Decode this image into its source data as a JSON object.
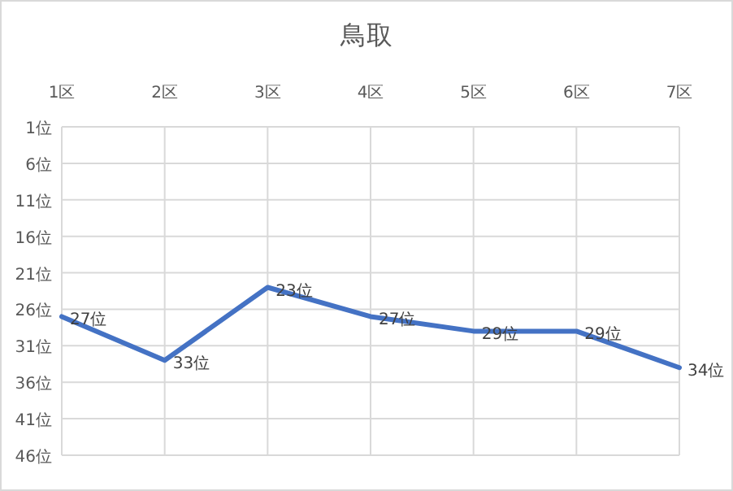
{
  "chart_data": {
    "type": "line",
    "title": "鳥取",
    "categories": [
      "1区",
      "2区",
      "3区",
      "4区",
      "5区",
      "6区",
      "7区"
    ],
    "series": [
      {
        "color": "#4472c4",
        "values": [
          27,
          33,
          23,
          27,
          29,
          29,
          34
        ],
        "value_labels": [
          "27位",
          "33位",
          "23位",
          "27位",
          "29位",
          "29位",
          "34位"
        ]
      }
    ],
    "ylim": [
      46,
      1
    ],
    "yticks": [
      {
        "value": 1,
        "label": "1位"
      },
      {
        "value": 6,
        "label": "6位"
      },
      {
        "value": 11,
        "label": "11位"
      },
      {
        "value": 16,
        "label": "16位"
      },
      {
        "value": 21,
        "label": "21位"
      },
      {
        "value": 26,
        "label": "26位"
      },
      {
        "value": 31,
        "label": "31位"
      },
      {
        "value": 36,
        "label": "36位"
      },
      {
        "value": 41,
        "label": "41位"
      },
      {
        "value": 46,
        "label": "46位"
      }
    ],
    "grid": true,
    "marker": "none",
    "line_style": "solid"
  }
}
